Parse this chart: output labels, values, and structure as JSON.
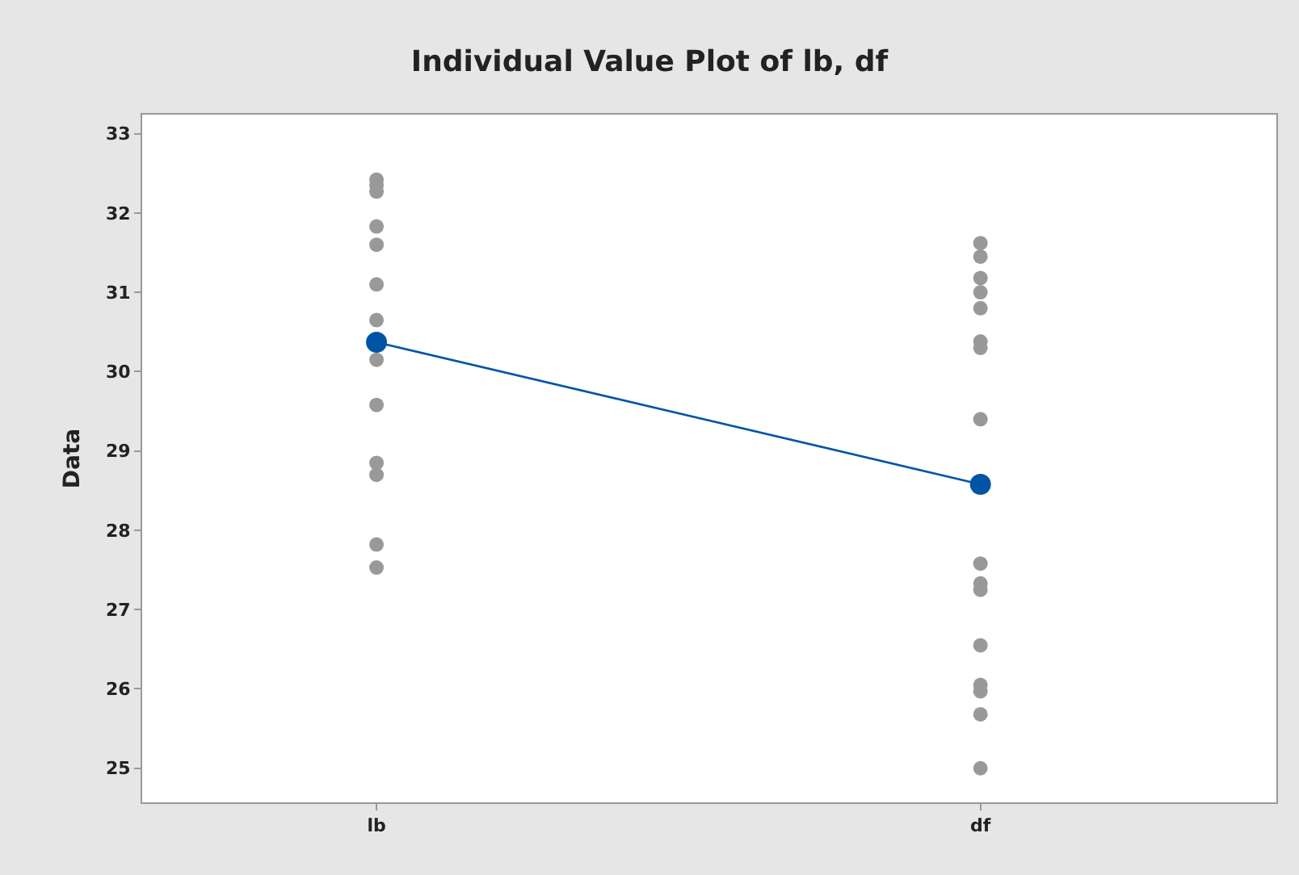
{
  "chart_data": {
    "type": "scatter",
    "title": "Individual Value Plot of lb, df",
    "ylabel": "Data",
    "categories": [
      "lb",
      "df"
    ],
    "series": [
      {
        "color": "#999999",
        "x": [
          "lb",
          "lb",
          "lb",
          "lb",
          "lb",
          "lb",
          "lb",
          "lb",
          "lb",
          "lb",
          "lb",
          "lb",
          "lb"
        ],
        "values": [
          32.42,
          32.35,
          32.27,
          31.83,
          31.6,
          31.1,
          30.65,
          30.15,
          29.58,
          28.85,
          28.7,
          27.82,
          27.53
        ]
      },
      {
        "color": "#999999",
        "x": [
          "df",
          "df",
          "df",
          "df",
          "df",
          "df",
          "df",
          "df",
          "df",
          "df",
          "df",
          "df",
          "df",
          "df",
          "df",
          "df"
        ],
        "values": [
          31.62,
          31.45,
          31.18,
          31.0,
          30.8,
          30.38,
          30.3,
          29.4,
          27.58,
          27.33,
          27.25,
          26.55,
          26.05,
          25.97,
          25.68,
          25.0
        ]
      },
      {
        "type": "line",
        "color": "#0054a6",
        "values": [
          30.37,
          28.58
        ]
      }
    ],
    "ylim": [
      24.57,
      33.24
    ],
    "yticks": [
      25,
      26,
      27,
      28,
      29,
      30,
      31,
      32,
      33
    ],
    "marker": "circle"
  }
}
